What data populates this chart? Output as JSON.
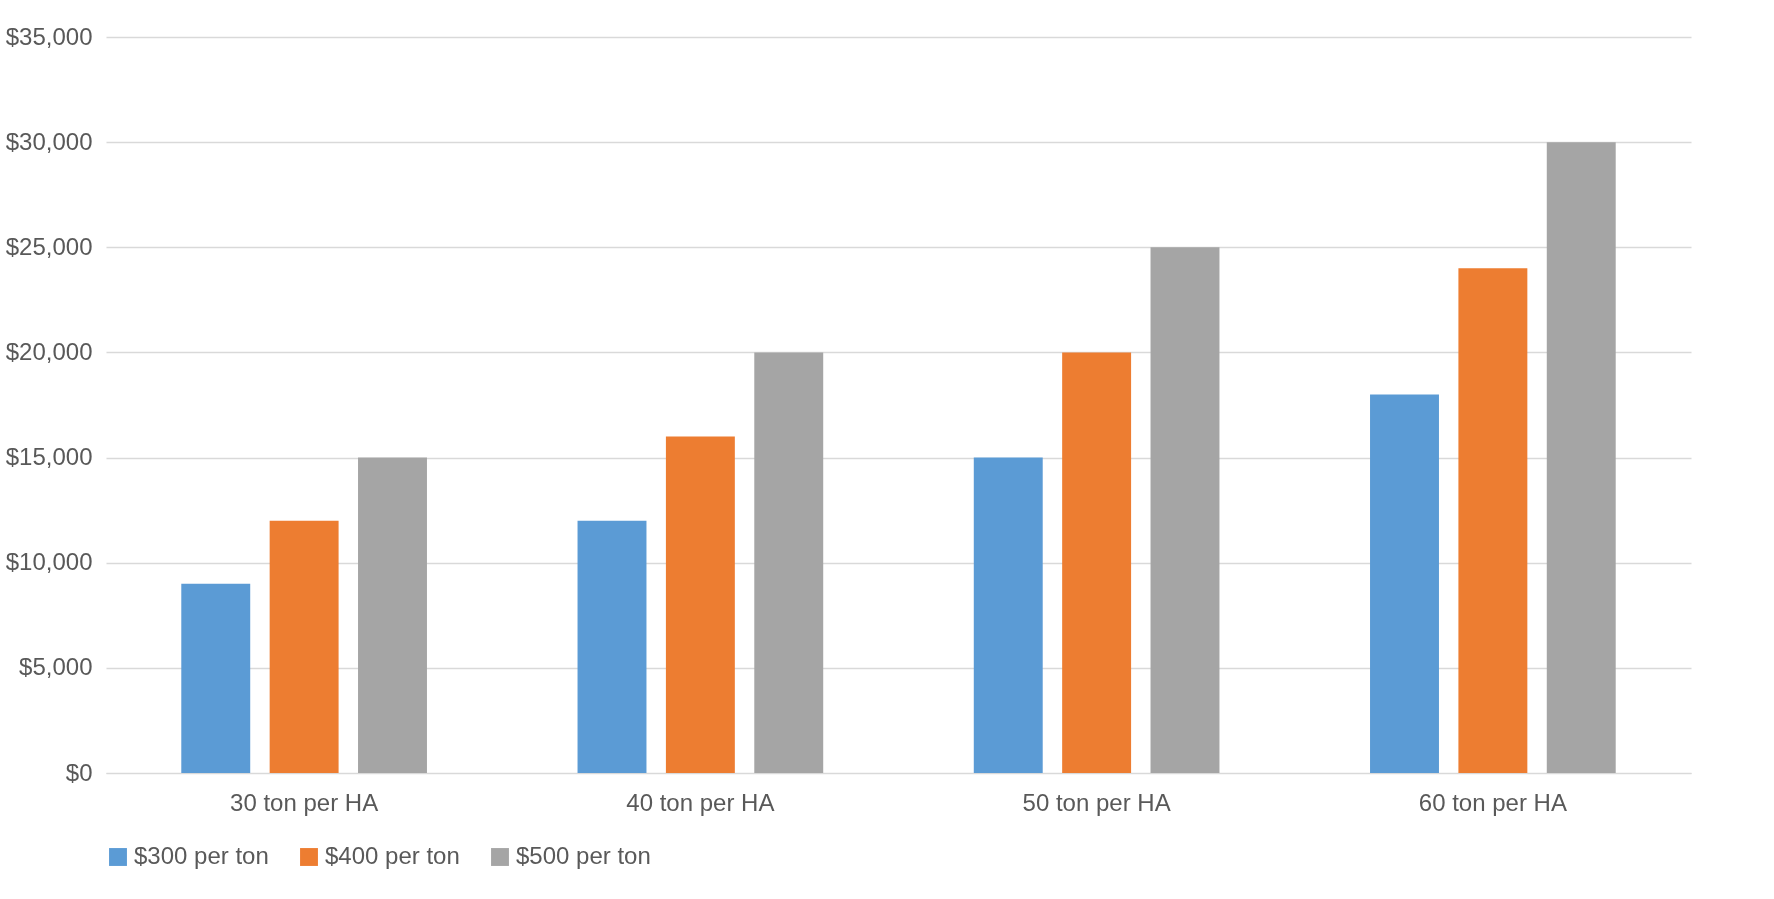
{
  "chart_data": {
    "type": "bar",
    "categories": [
      "30 ton per HA",
      "40 ton per HA",
      "50 ton per HA",
      "60 ton per HA"
    ],
    "series": [
      {
        "name": "$300 per ton",
        "color": "#5b9bd5",
        "values": [
          9000,
          12000,
          15000,
          18000
        ]
      },
      {
        "name": "$400 per ton",
        "color": "#ed7d31",
        "values": [
          12000,
          16000,
          20000,
          24000
        ]
      },
      {
        "name": "$500 per ton",
        "color": "#a5a5a5",
        "values": [
          15000,
          20000,
          25000,
          30000
        ]
      }
    ],
    "ylim": [
      0,
      35000
    ],
    "yticks": [
      {
        "value": 0,
        "label": "$0"
      },
      {
        "value": 5000,
        "label": "$5,000"
      },
      {
        "value": 10000,
        "label": "$10,000"
      },
      {
        "value": 15000,
        "label": "$15,000"
      },
      {
        "value": 20000,
        "label": "$20,000"
      },
      {
        "value": 25000,
        "label": "$25,000"
      },
      {
        "value": 30000,
        "label": "$30,000"
      },
      {
        "value": 35000,
        "label": "$35,000"
      }
    ],
    "grid": "y",
    "legend": "bottom"
  }
}
